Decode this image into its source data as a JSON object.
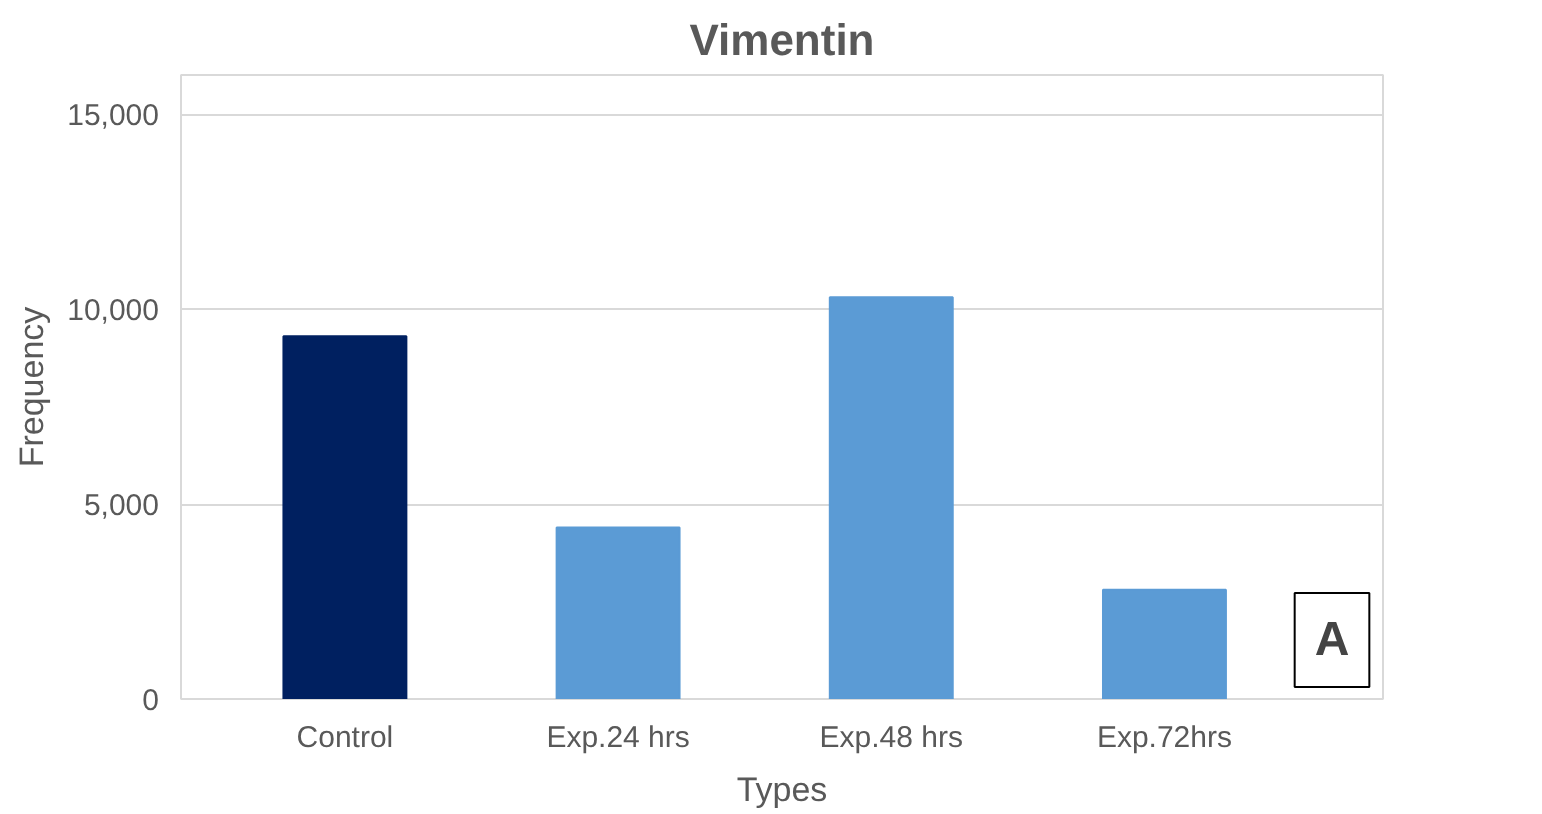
{
  "chart_data": {
    "type": "bar",
    "title": "Vimentin",
    "xlabel": "Types",
    "ylabel": "Frequency",
    "categories": [
      "Control",
      "Exp.24 hrs",
      "Exp.48 hrs",
      "Exp.72hrs"
    ],
    "values": [
      9300,
      4400,
      10300,
      2800
    ],
    "colors": [
      "#002060",
      "#5b9bd5",
      "#5b9bd5",
      "#5b9bd5"
    ],
    "ylim": [
      0,
      16000
    ],
    "yticks": [
      {
        "value": 0,
        "label": "0"
      },
      {
        "value": 5000,
        "label": "5,000"
      },
      {
        "value": 10000,
        "label": "10,000"
      },
      {
        "value": 15000,
        "label": "15,000"
      }
    ],
    "grid": "y",
    "annotations": [
      "A"
    ]
  }
}
